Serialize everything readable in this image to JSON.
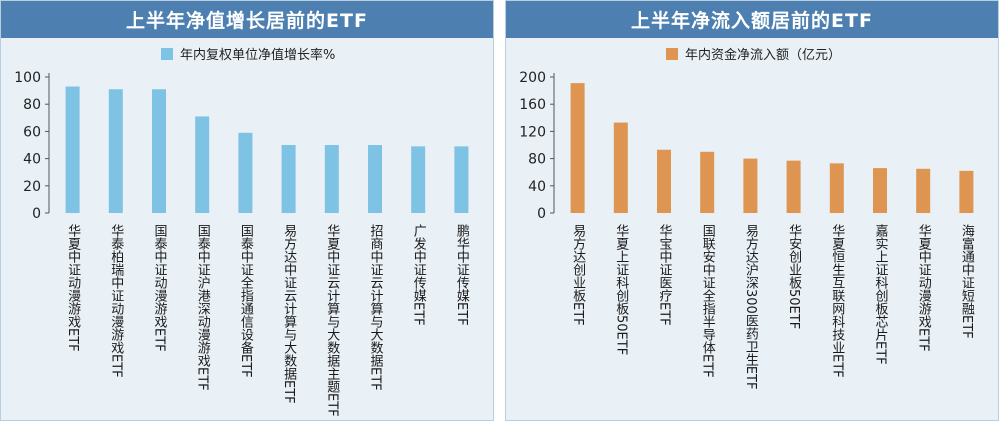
{
  "chart_data": [
    {
      "type": "bar",
      "title": "上半年净值增长居前的ETF",
      "categories": [
        "华夏中证动漫游戏ETF",
        "华泰柏瑞中证动漫游戏ETF",
        "国泰中证动漫游戏ETF",
        "国泰中证沪港深动漫游戏ETF",
        "国泰中证全指通信设备ETF",
        "易方达中证云计算与大数据ETF",
        "华夏中证云计算与大数据主题ETF",
        "招商中证云计算与大数据ETF",
        "广发中证传媒ETF",
        "鹏华中证传媒ETF"
      ],
      "series": [
        {
          "name": "年内复权单位净值增长率%",
          "values": [
            93,
            91,
            91,
            71,
            59,
            50,
            50,
            50,
            49,
            49
          ]
        }
      ],
      "ylim": [
        0,
        100
      ],
      "yticks": [
        0,
        20,
        40,
        60,
        80,
        100
      ],
      "color": "#7ec3e3",
      "legend_position": "top-center",
      "grid": false
    },
    {
      "type": "bar",
      "title": "上半年净流入额居前的ETF",
      "categories": [
        "易方达创业板ETF",
        "华夏上证科创板50ETF",
        "华宝中证医疗ETF",
        "国联安中证全指半导体ETF",
        "易方达沪深300医药卫生ETF",
        "华安创业板50ETF",
        "华夏恒生互联网科技业ETF",
        "嘉实上证科创板芯片ETF",
        "华夏中证动漫游戏ETF",
        "海富通中证短融ETF"
      ],
      "series": [
        {
          "name": "年内资金净流入额（亿元）",
          "values": [
            191,
            133,
            93,
            90,
            80,
            77,
            73,
            66,
            65,
            62
          ]
        }
      ],
      "ylim": [
        0,
        200
      ],
      "yticks": [
        0,
        40,
        80,
        120,
        160,
        200
      ],
      "color": "#dd9551",
      "legend_position": "top-center",
      "grid": false
    }
  ]
}
